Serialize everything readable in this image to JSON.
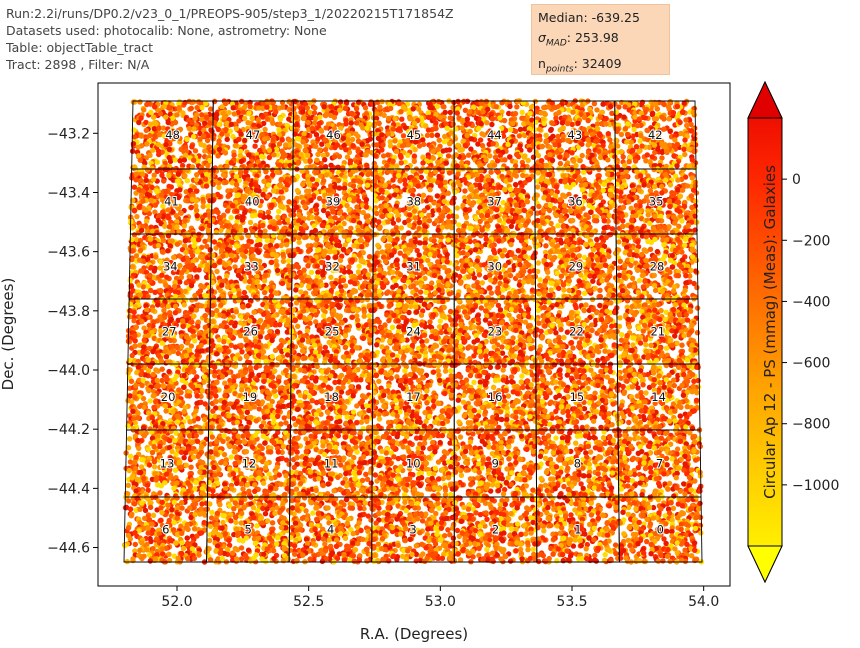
{
  "header": {
    "run": "Run:2.2i/runs/DP0.2/v23_0_1/PREOPS-905/step3_1/20220215T171854Z",
    "datasets": "Datasets used: photocalib: None, astrometry: None",
    "table": "Table: objectTable_tract",
    "tract": "Tract: 2898 , Filter: N/A"
  },
  "stats": {
    "median": "Median: -639.25",
    "sigma": "σMAD: 253.98",
    "npoints": "npoints: 32409"
  },
  "colors": {
    "cmap": [
      "#ffff00",
      "#ffd200",
      "#ffa000",
      "#ff6400",
      "#ff2800",
      "#e60000",
      "#a00000"
    ],
    "box_fill": "#fbd7b8"
  },
  "chart_data": {
    "type": "scatter",
    "title": "",
    "xlabel": "R.A. (Degrees)",
    "ylabel": "Dec. (Degrees)",
    "colorbar_label": "Circular Ap 12 - PS (mmag) (Meas): Galaxies",
    "xlim": [
      51.7,
      54.1
    ],
    "ylim": [
      -44.73,
      -43.03
    ],
    "xticks": [
      "52.0",
      "52.5",
      "53.0",
      "53.5",
      "54.0"
    ],
    "yticks": [
      "−43.2",
      "−43.4",
      "−43.6",
      "−43.8",
      "−44.0",
      "−44.2",
      "−44.4",
      "−44.6"
    ],
    "cbar_ticks": [
      "0",
      "−200",
      "−400",
      "−600",
      "−800",
      "−1000"
    ],
    "cbar_range": [
      -1200,
      200
    ],
    "patches": [
      {
        "id": "48",
        "row": 0,
        "col": 0
      },
      {
        "id": "47",
        "row": 0,
        "col": 1
      },
      {
        "id": "46",
        "row": 0,
        "col": 2
      },
      {
        "id": "45",
        "row": 0,
        "col": 3
      },
      {
        "id": "44",
        "row": 0,
        "col": 4
      },
      {
        "id": "43",
        "row": 0,
        "col": 5
      },
      {
        "id": "42",
        "row": 0,
        "col": 6
      },
      {
        "id": "41",
        "row": 1,
        "col": 0
      },
      {
        "id": "40",
        "row": 1,
        "col": 1
      },
      {
        "id": "39",
        "row": 1,
        "col": 2
      },
      {
        "id": "38",
        "row": 1,
        "col": 3
      },
      {
        "id": "37",
        "row": 1,
        "col": 4
      },
      {
        "id": "36",
        "row": 1,
        "col": 5
      },
      {
        "id": "35",
        "row": 1,
        "col": 6
      },
      {
        "id": "34",
        "row": 2,
        "col": 0
      },
      {
        "id": "33",
        "row": 2,
        "col": 1
      },
      {
        "id": "32",
        "row": 2,
        "col": 2
      },
      {
        "id": "31",
        "row": 2,
        "col": 3
      },
      {
        "id": "30",
        "row": 2,
        "col": 4
      },
      {
        "id": "29",
        "row": 2,
        "col": 5
      },
      {
        "id": "28",
        "row": 2,
        "col": 6
      },
      {
        "id": "27",
        "row": 3,
        "col": 0
      },
      {
        "id": "26",
        "row": 3,
        "col": 1
      },
      {
        "id": "25",
        "row": 3,
        "col": 2
      },
      {
        "id": "24",
        "row": 3,
        "col": 3
      },
      {
        "id": "23",
        "row": 3,
        "col": 4
      },
      {
        "id": "22",
        "row": 3,
        "col": 5
      },
      {
        "id": "21",
        "row": 3,
        "col": 6
      },
      {
        "id": "20",
        "row": 4,
        "col": 0
      },
      {
        "id": "19",
        "row": 4,
        "col": 1
      },
      {
        "id": "18",
        "row": 4,
        "col": 2
      },
      {
        "id": "17",
        "row": 4,
        "col": 3
      },
      {
        "id": "16",
        "row": 4,
        "col": 4
      },
      {
        "id": "15",
        "row": 4,
        "col": 5
      },
      {
        "id": "14",
        "row": 4,
        "col": 6
      },
      {
        "id": "13",
        "row": 5,
        "col": 0
      },
      {
        "id": "12",
        "row": 5,
        "col": 1
      },
      {
        "id": "11",
        "row": 5,
        "col": 2
      },
      {
        "id": "10",
        "row": 5,
        "col": 3
      },
      {
        "id": "9",
        "row": 5,
        "col": 4
      },
      {
        "id": "8",
        "row": 5,
        "col": 5
      },
      {
        "id": "7",
        "row": 5,
        "col": 6
      },
      {
        "id": "6",
        "row": 6,
        "col": 0
      },
      {
        "id": "5",
        "row": 6,
        "col": 1
      },
      {
        "id": "4",
        "row": 6,
        "col": 2
      },
      {
        "id": "3",
        "row": 6,
        "col": 3
      },
      {
        "id": "2",
        "row": 6,
        "col": 4
      },
      {
        "id": "1",
        "row": 6,
        "col": 5
      },
      {
        "id": "0",
        "row": 6,
        "col": 6
      }
    ]
  }
}
